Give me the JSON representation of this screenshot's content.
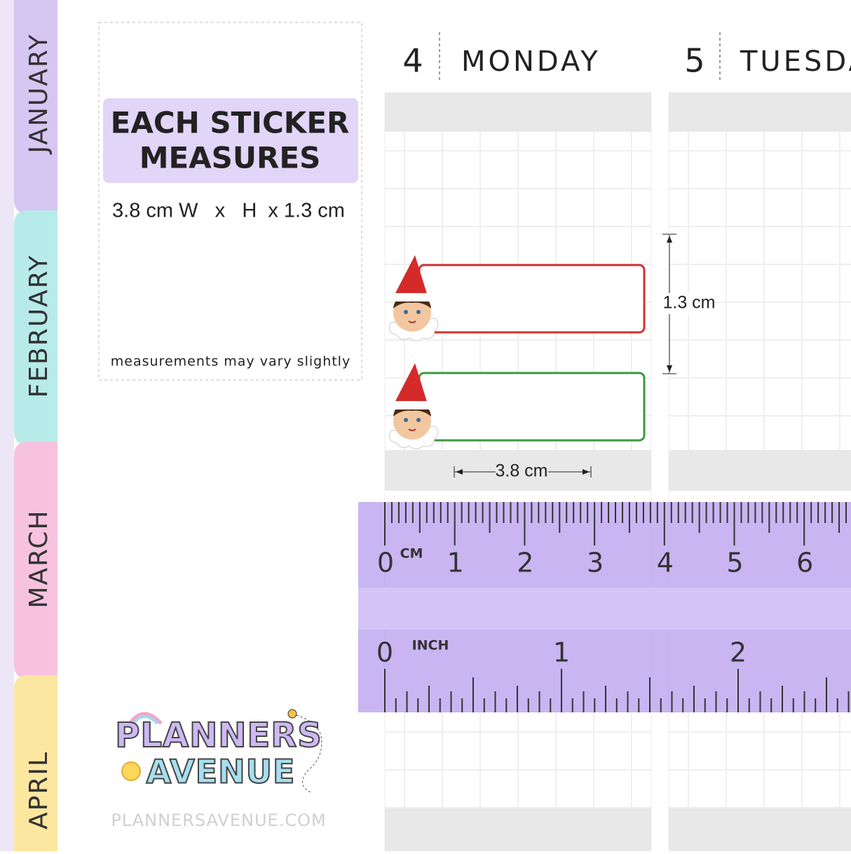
{
  "tabs": [
    "JANUARY",
    "FEBRUARY",
    "MARCH",
    "APRIL"
  ],
  "info": {
    "title_lines": [
      "EACH STICKER",
      "MEASURES"
    ],
    "size": "3.8 cm W   x   H  x 1.3 cm",
    "note": "measurements may vary slightly"
  },
  "days": [
    {
      "number": "4",
      "name": "MONDAY"
    },
    {
      "number": "5",
      "name": "TUESDAY"
    }
  ],
  "dimensions": {
    "height": "1.3 cm",
    "width": "3.8 cm"
  },
  "ruler": {
    "cm_unit": "CM",
    "cm_labels": [
      "0",
      "1",
      "2",
      "3",
      "4",
      "5",
      "6"
    ],
    "inch_unit": "INCH",
    "inch_labels": [
      "0",
      "1",
      "2"
    ]
  },
  "logo": {
    "lines": [
      "PLANNERS",
      "AVENUE"
    ],
    "url": "PLANNERSAVENUE.COM"
  }
}
